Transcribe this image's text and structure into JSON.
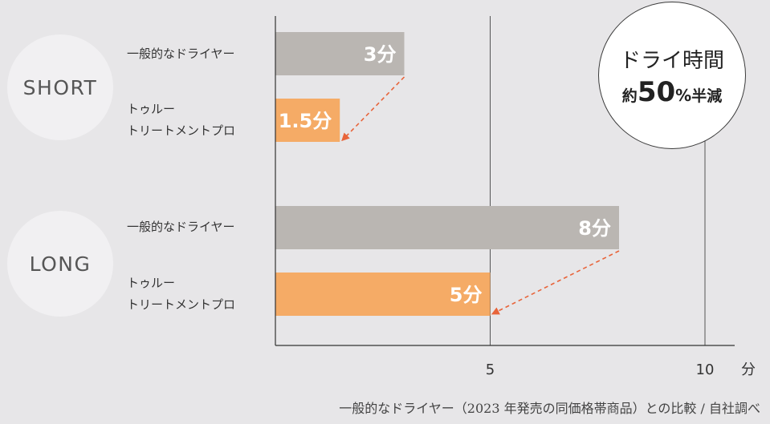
{
  "chart_data": {
    "type": "bar",
    "orientation": "horizontal",
    "unit": "分",
    "xlim": [
      0,
      10
    ],
    "xticks": [
      5,
      10
    ],
    "grid": true,
    "groups": [
      {
        "name": "SHORT",
        "bars": [
          {
            "label": "一般的なドライヤー",
            "value": 3,
            "value_label": "3分",
            "color": "#bab6b2"
          },
          {
            "label": "トゥルー\nトリートメントプロ",
            "value": 1.5,
            "value_label": "1.5分",
            "color": "#f5ab66"
          }
        ]
      },
      {
        "name": "LONG",
        "bars": [
          {
            "label": "一般的なドライヤー",
            "value": 8,
            "value_label": "8分",
            "color": "#bab6b2"
          },
          {
            "label": "トゥルー\nトリートメントプロ",
            "value": 5,
            "value_label": "5分",
            "color": "#f5ab66"
          }
        ]
      }
    ],
    "arrow_color": "#e8643a"
  },
  "badge": {
    "line1": "ドライ時間",
    "prefix": "約",
    "number": "50",
    "percent": "%",
    "suffix": "半減"
  },
  "footnote": "一般的なドライヤー（2023 年発売の同価格帯商品）との比較 / 自社調べ"
}
